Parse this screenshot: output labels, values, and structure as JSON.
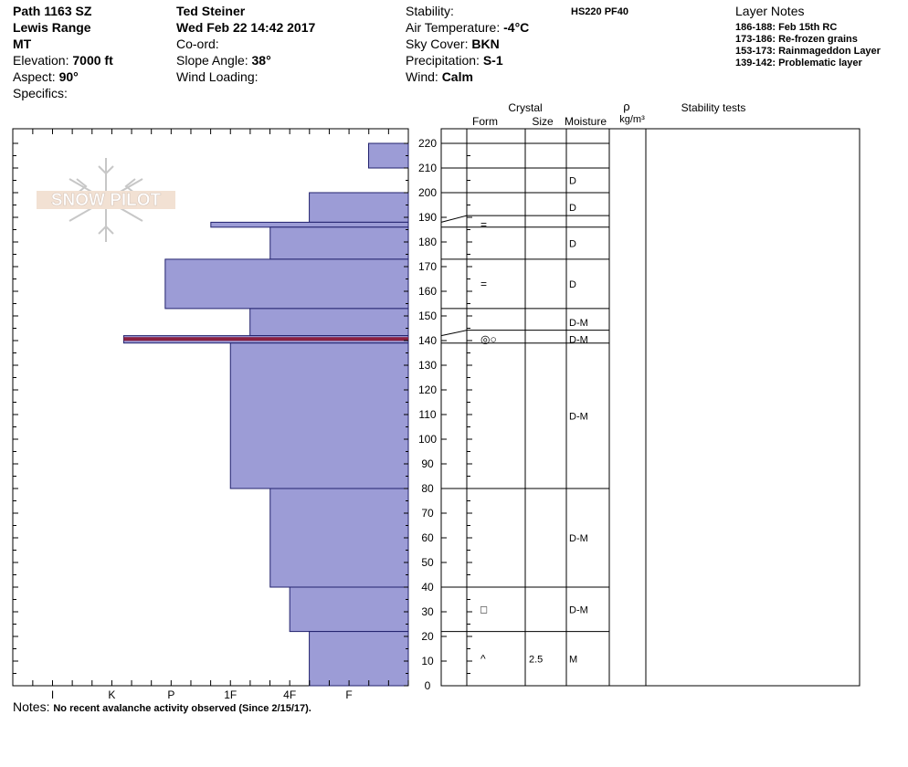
{
  "header": {
    "col1": [
      {
        "label": "",
        "value": "Path 1163 SZ"
      },
      {
        "label": "",
        "value": "Lewis Range"
      },
      {
        "label": "",
        "value": "MT"
      },
      {
        "label": "Elevation: ",
        "value": "7000 ft"
      },
      {
        "label": "Aspect: ",
        "value": "90°"
      },
      {
        "label": "Specifics:",
        "value": ""
      }
    ],
    "col2": [
      {
        "label": "",
        "value": "Ted Steiner"
      },
      {
        "label": "",
        "value": "Wed Feb 22 14:42 2017"
      },
      {
        "label": "Co-ord:",
        "value": ""
      },
      {
        "label": "Slope Angle: ",
        "value": "38°"
      },
      {
        "label": "Wind Loading:",
        "value": ""
      }
    ],
    "col3": [
      {
        "label": "Stability:",
        "value": ""
      },
      {
        "label": "Air Temperature: ",
        "value": "-4°C"
      },
      {
        "label": "Sky Cover: ",
        "value": "BKN"
      },
      {
        "label": "Precipitation: ",
        "value": "S-1"
      },
      {
        "label": "Wind:  ",
        "value": "Calm"
      }
    ],
    "hs_pf": "HS220  PF40"
  },
  "layer_notes": {
    "title": "Layer Notes",
    "items": [
      "186-188: Feb 15th RC",
      "173-186: Re-frozen grains",
      "153-173: Rainmageddon Layer",
      "139-142: Problematic layer"
    ]
  },
  "columns": {
    "crystal": "Crystal",
    "form": "Form",
    "size": "Size",
    "moisture": "Moisture",
    "rho": "ρ",
    "density_unit": "kg/m³",
    "stability_tests": "Stability tests"
  },
  "notes": {
    "label": "Notes: ",
    "value": "No recent avalanche activity observed (Since 2/15/17)."
  },
  "logo_text": "SNOW PILOT",
  "colors": {
    "bar_fill": "#9c9cd6",
    "bar_stroke": "#22226e",
    "problem_layer": "#8a2040"
  },
  "chart_data": {
    "type": "bar",
    "orientation": "horizontal",
    "ylim": [
      0,
      220
    ],
    "yticks": [
      0,
      10,
      20,
      30,
      40,
      50,
      60,
      70,
      80,
      90,
      100,
      110,
      120,
      130,
      140,
      150,
      160,
      170,
      180,
      190,
      200,
      210,
      220
    ],
    "hardness_scale": [
      "I",
      "K",
      "P",
      "1F",
      "4F",
      "F"
    ],
    "hardness_tick_positions": [
      0,
      1,
      2,
      3,
      4,
      5
    ],
    "hardness_max": 6.67,
    "layers": [
      {
        "bottom": 210,
        "top": 220,
        "hardness": 0.67
      },
      {
        "bottom": 188,
        "top": 200,
        "hardness": 1.67
      },
      {
        "bottom": 186,
        "top": 188,
        "hardness": 3.33
      },
      {
        "bottom": 173,
        "top": 186,
        "hardness": 2.33
      },
      {
        "bottom": 153,
        "top": 173,
        "hardness": 4.1
      },
      {
        "bottom": 142,
        "top": 153,
        "hardness": 2.67
      },
      {
        "bottom": 139,
        "top": 142,
        "hardness": 4.8,
        "problem": true
      },
      {
        "bottom": 80,
        "top": 139,
        "hardness": 3.0
      },
      {
        "bottom": 40,
        "top": 80,
        "hardness": 2.33
      },
      {
        "bottom": 22,
        "top": 40,
        "hardness": 2.0
      },
      {
        "bottom": 0,
        "top": 22,
        "hardness": 1.67
      }
    ],
    "profile_rows": [
      {
        "bottom": 210,
        "top": 220,
        "form": "",
        "size": "",
        "moisture": ""
      },
      {
        "bottom": 200,
        "top": 210,
        "form": "",
        "size": "",
        "moisture": "D"
      },
      {
        "bottom": 188,
        "top": 200,
        "form": "",
        "size": "",
        "moisture": "D"
      },
      {
        "bottom": 186,
        "top": 188,
        "form": "=",
        "size": "",
        "moisture": ""
      },
      {
        "bottom": 173,
        "top": 186,
        "form": "",
        "size": "",
        "moisture": "D"
      },
      {
        "bottom": 153,
        "top": 173,
        "form": "=",
        "size": "",
        "moisture": "D"
      },
      {
        "bottom": 142,
        "top": 153,
        "form": "",
        "size": "",
        "moisture": "D-M"
      },
      {
        "bottom": 139,
        "top": 142,
        "form": "◎○",
        "size": "",
        "moisture": "D-M"
      },
      {
        "bottom": 80,
        "top": 139,
        "form": "",
        "size": "",
        "moisture": "D-M"
      },
      {
        "bottom": 40,
        "top": 80,
        "form": "",
        "size": "",
        "moisture": "D-M"
      },
      {
        "bottom": 22,
        "top": 40,
        "form": "□",
        "size": "",
        "moisture": "D-M"
      },
      {
        "bottom": 0,
        "top": 22,
        "form": "^",
        "size": "2.5",
        "moisture": "M"
      }
    ]
  }
}
